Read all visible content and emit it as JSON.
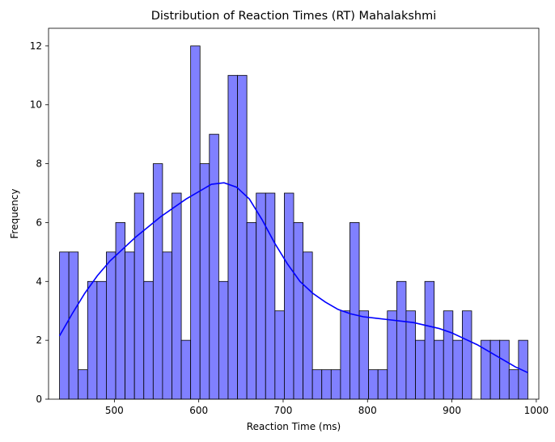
{
  "chart_data": {
    "type": "bar",
    "subtype": "histogram",
    "title": "Distribution of Reaction Times (RT) Mahalakshmi",
    "xlabel": "Reaction Time (ms)",
    "ylabel": "Frequency",
    "xlim": [
      422,
      1003
    ],
    "ylim": [
      0,
      12.6
    ],
    "xticks": [
      500,
      600,
      700,
      800,
      900,
      1000
    ],
    "yticks": [
      0,
      2,
      4,
      6,
      8,
      10,
      12
    ],
    "bin_start": 435,
    "bin_width": 11.1,
    "counts": [
      5,
      5,
      1,
      4,
      4,
      5,
      6,
      5,
      7,
      4,
      8,
      5,
      7,
      2,
      12,
      8,
      9,
      4,
      11,
      11,
      6,
      7,
      7,
      3,
      7,
      6,
      5,
      1,
      1,
      1,
      3,
      6,
      3,
      1,
      1,
      3,
      4,
      3,
      2,
      4,
      2,
      3,
      2,
      3,
      0,
      2,
      2,
      2,
      1,
      2
    ],
    "bar_color": "#8080ff",
    "bar_edge_color": "#000000",
    "kde": {
      "color": "#0000ff",
      "x": [
        435,
        450,
        465,
        480,
        495,
        510,
        525,
        540,
        555,
        570,
        585,
        600,
        615,
        630,
        645,
        660,
        675,
        690,
        705,
        720,
        735,
        750,
        765,
        780,
        795,
        810,
        825,
        840,
        855,
        870,
        885,
        900,
        915,
        930,
        945,
        960,
        975,
        990
      ],
      "y": [
        2.15,
        2.9,
        3.6,
        4.2,
        4.7,
        5.1,
        5.5,
        5.85,
        6.2,
        6.5,
        6.8,
        7.05,
        7.3,
        7.35,
        7.2,
        6.8,
        6.1,
        5.3,
        4.6,
        4.0,
        3.6,
        3.3,
        3.05,
        2.9,
        2.8,
        2.75,
        2.7,
        2.65,
        2.6,
        2.5,
        2.4,
        2.25,
        2.05,
        1.85,
        1.6,
        1.35,
        1.1,
        0.9
      ]
    },
    "grid": false,
    "legend": "none"
  }
}
